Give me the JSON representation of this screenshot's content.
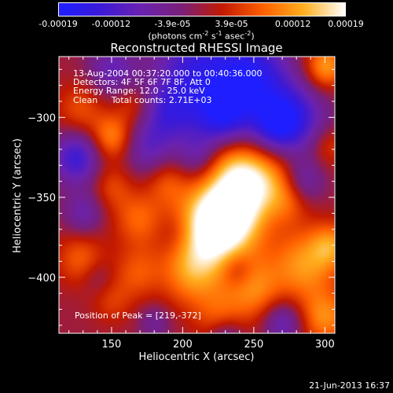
{
  "colorbar": {
    "ticks": [
      "-0.00019",
      "-0.00012",
      "-3.9e-05",
      "3.9e-05",
      "0.00012",
      "0.00019"
    ],
    "units_prefix": "(photons cm",
    "units_exp1": "-2",
    "units_mid": " s",
    "units_exp2": "-1",
    "units_mid2": " asec",
    "units_exp3": "-2",
    "units_suffix": ")",
    "colors": [
      "#1e1eff",
      "#3a1ad8",
      "#6a22b0",
      "#7a1f78",
      "#c21a00",
      "#ff6000",
      "#ffb020",
      "#ffffff"
    ]
  },
  "footer": {
    "timestamp": "21-Jun-2013 16:37"
  },
  "chart_data": {
    "type": "heatmap",
    "title": "Reconstructed RHESSI Image",
    "xlabel": "Heliocentric X (arcsec)",
    "ylabel": "Heliocentric Y (arcsec)",
    "xlim": [
      113,
      307
    ],
    "ylim": [
      -435,
      -262
    ],
    "xticks": [
      150,
      200,
      250,
      300
    ],
    "yticks": [
      -300,
      -350,
      -400
    ],
    "annotations": [
      "13-Aug-2004 00:37:20.000 to 00:40:36.000",
      "Detectors: 4F 5F 6F 7F 8F, Att 0",
      "Energy Range: 12.0 - 25.0 keV",
      "Clean     Total counts: 2.71E+03"
    ],
    "peak_label": "Position of Peak = [219,-372]",
    "value_range": [
      -0.00019,
      0.00019
    ],
    "peak": [
      219,
      -372
    ],
    "blobs": [
      {
        "x": 219,
        "y": -372,
        "v": 1.0,
        "s": 20
      },
      {
        "x": 236,
        "y": -355,
        "v": 0.85,
        "s": 17
      },
      {
        "x": 258,
        "y": -338,
        "v": 0.55,
        "s": 14
      },
      {
        "x": 236,
        "y": -328,
        "v": 0.45,
        "s": 13
      },
      {
        "x": 285,
        "y": -392,
        "v": 0.6,
        "s": 16
      },
      {
        "x": 300,
        "y": -425,
        "v": 0.55,
        "s": 12
      },
      {
        "x": 304,
        "y": -380,
        "v": 0.5,
        "s": 10
      },
      {
        "x": 303,
        "y": -318,
        "v": 0.3,
        "s": 9
      },
      {
        "x": 300,
        "y": -268,
        "v": 0.65,
        "s": 10
      },
      {
        "x": 128,
        "y": -295,
        "v": 0.35,
        "s": 12
      },
      {
        "x": 150,
        "y": -312,
        "v": 0.55,
        "s": 10
      },
      {
        "x": 165,
        "y": -292,
        "v": 0.3,
        "s": 9
      },
      {
        "x": 150,
        "y": -343,
        "v": 0.3,
        "s": 10
      },
      {
        "x": 168,
        "y": -363,
        "v": 0.4,
        "s": 12
      },
      {
        "x": 188,
        "y": -340,
        "v": 0.3,
        "s": 10
      },
      {
        "x": 128,
        "y": -388,
        "v": 0.4,
        "s": 12
      },
      {
        "x": 168,
        "y": -397,
        "v": 0.35,
        "s": 12
      },
      {
        "x": 205,
        "y": -400,
        "v": 0.4,
        "s": 14
      },
      {
        "x": 250,
        "y": -408,
        "v": 0.5,
        "s": 14
      },
      {
        "x": 225,
        "y": -425,
        "v": 0.35,
        "s": 12
      },
      {
        "x": 150,
        "y": -415,
        "v": 0.25,
        "s": 10
      },
      {
        "x": 275,
        "y": -352,
        "v": 0.3,
        "s": 10
      },
      {
        "x": 210,
        "y": -270,
        "v": -0.7,
        "s": 22
      },
      {
        "x": 250,
        "y": -275,
        "v": -0.8,
        "s": 18
      },
      {
        "x": 280,
        "y": -300,
        "v": -0.6,
        "s": 16
      },
      {
        "x": 190,
        "y": -298,
        "v": -0.5,
        "s": 14
      },
      {
        "x": 228,
        "y": -300,
        "v": -0.7,
        "s": 14
      },
      {
        "x": 265,
        "y": -305,
        "v": -0.6,
        "s": 12
      },
      {
        "x": 125,
        "y": -325,
        "v": -0.7,
        "s": 12
      },
      {
        "x": 150,
        "y": -270,
        "v": -0.45,
        "s": 12
      },
      {
        "x": 175,
        "y": -320,
        "v": -0.4,
        "s": 12
      },
      {
        "x": 210,
        "y": -325,
        "v": -0.35,
        "s": 10
      },
      {
        "x": 285,
        "y": -340,
        "v": -0.4,
        "s": 10
      },
      {
        "x": 130,
        "y": -360,
        "v": -0.4,
        "s": 10
      },
      {
        "x": 195,
        "y": -372,
        "v": -0.25,
        "s": 10
      },
      {
        "x": 140,
        "y": -400,
        "v": -0.2,
        "s": 8
      },
      {
        "x": 238,
        "y": -395,
        "v": -0.3,
        "s": 8
      },
      {
        "x": 270,
        "y": -428,
        "v": -0.5,
        "s": 10
      },
      {
        "x": 230,
        "y": -438,
        "v": -0.45,
        "s": 9
      },
      {
        "x": 180,
        "y": -428,
        "v": -0.3,
        "s": 8
      }
    ]
  }
}
